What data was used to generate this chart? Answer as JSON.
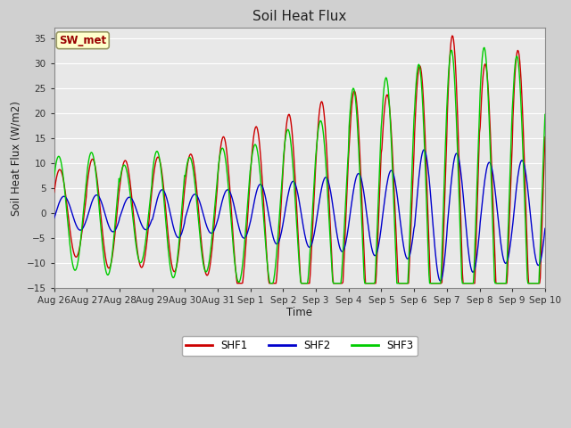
{
  "title": "Soil Heat Flux",
  "ylabel": "Soil Heat Flux (W/m2)",
  "xlabel": "Time",
  "ylim": [
    -15,
    37
  ],
  "yticks": [
    -15,
    -10,
    -5,
    0,
    5,
    10,
    15,
    20,
    25,
    30,
    35
  ],
  "fig_bg_color": "#d0d0d0",
  "plot_bg_color": "#e8e8e8",
  "grid_color": "#ffffff",
  "series": [
    {
      "name": "SHF1",
      "color": "#cc0000"
    },
    {
      "name": "SHF2",
      "color": "#0000cc"
    },
    {
      "name": "SHF3",
      "color": "#00cc00"
    }
  ],
  "annotation": {
    "text": "SW_met",
    "color": "#990000",
    "bg": "#ffffcc",
    "border": "#999966"
  },
  "n_days": 15,
  "samples_per_day": 48,
  "tick_labels": [
    "Aug 26",
    "Aug 27",
    "Aug 28",
    "Aug 29",
    "Aug 30",
    "Aug 31",
    "Sep 1",
    "Sep 2",
    "Sep 3",
    "Sep 4",
    "Sep 5",
    "Sep 6",
    "Sep 7",
    "Sep 8",
    "Sep 9",
    "Sep 10"
  ]
}
